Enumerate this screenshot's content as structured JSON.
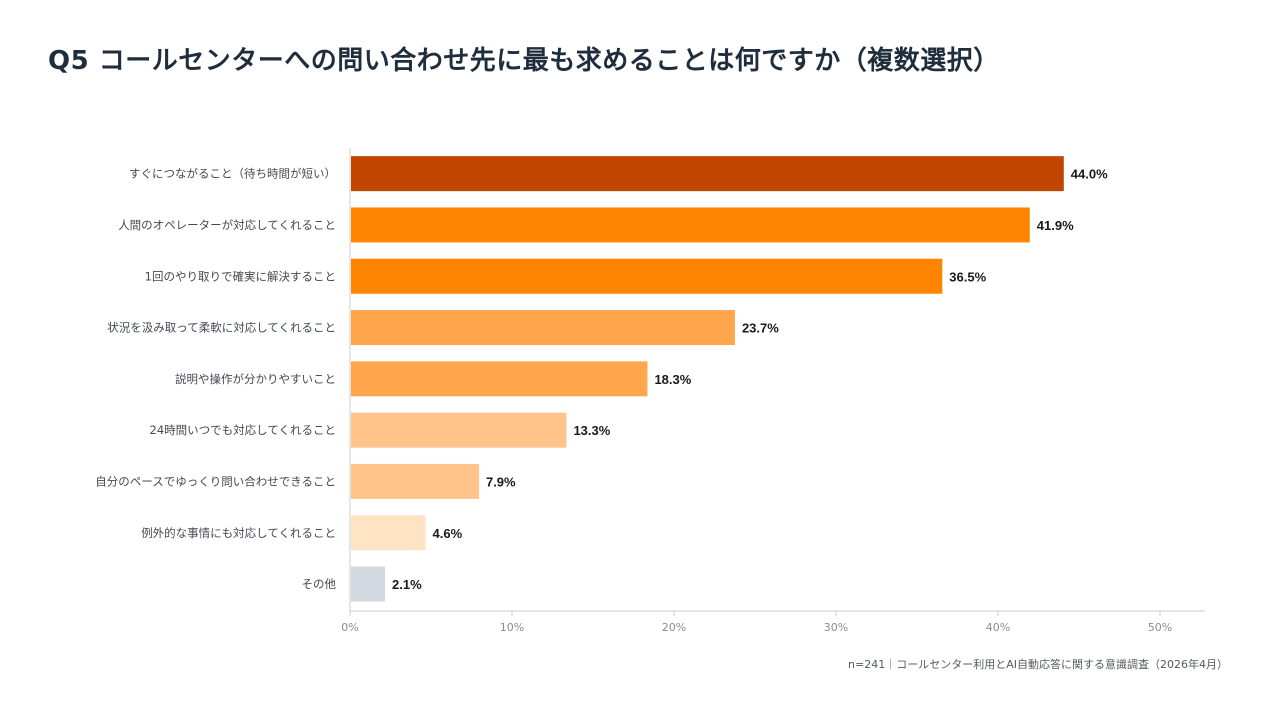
{
  "title": "Q5 コールセンターへの問い合わせ先に最も求めることは何ですか（複数選択）",
  "footnote": "n=241｜コールセンター利用とAI自動応答に関する意識調査（2026年4月）",
  "chart_data": {
    "type": "bar",
    "orientation": "horizontal",
    "categories": [
      "すぐにつながること（待ち時間が短い）",
      "人間のオペレーターが対応してくれること",
      "1回のやり取りで確実に解決すること",
      "状況を汲み取って柔軟に対応してくれること",
      "説明や操作が分かりやすいこと",
      "24時間いつでも対応してくれること",
      "自分のペースでゆっくり問い合わせできること",
      "例外的な事情にも対応してくれること",
      "その他"
    ],
    "values": [
      44.0,
      41.9,
      36.5,
      23.7,
      18.3,
      13.3,
      7.9,
      4.6,
      2.1
    ],
    "value_labels": [
      "44.0%",
      "41.9%",
      "36.5%",
      "23.7%",
      "18.3%",
      "13.3%",
      "7.9%",
      "4.6%",
      "2.1%"
    ],
    "colors": [
      "#c24500",
      "#ff8500",
      "#ff8500",
      "#ffa64d",
      "#ffa64d",
      "#ffc48a",
      "#ffc48a",
      "#ffe3c4",
      "#d3d8e0"
    ],
    "xlim": [
      0,
      50
    ],
    "xticks": [
      0,
      10,
      20,
      30,
      40,
      50
    ],
    "xtick_labels": [
      "0%",
      "10%",
      "20%",
      "30%",
      "40%",
      "50%"
    ],
    "grid": false,
    "legend": "none"
  }
}
